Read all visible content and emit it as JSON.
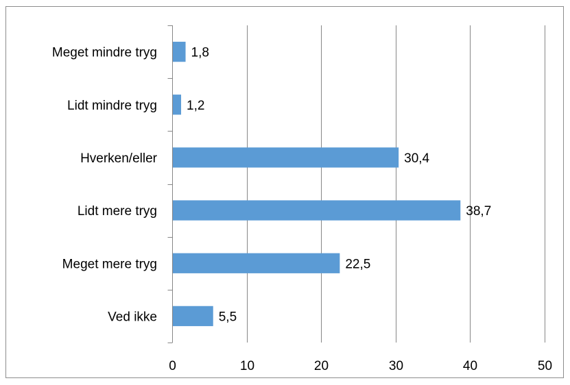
{
  "chart_data": {
    "type": "bar",
    "orientation": "horizontal",
    "categories": [
      "Meget mindre tryg",
      "Lidt mindre tryg",
      "Hverken/eller",
      "Lidt mere tryg",
      "Meget mere tryg",
      "Ved ikke"
    ],
    "values": [
      1.8,
      1.2,
      30.4,
      38.7,
      22.5,
      5.5
    ],
    "value_labels": [
      "1,8",
      "1,2",
      "30,4",
      "38,7",
      "22,5",
      "5,5"
    ],
    "xlim": [
      0,
      50
    ],
    "xticks": [
      "0",
      "10",
      "20",
      "30",
      "40",
      "50"
    ],
    "grid": "vertical",
    "legend": "none",
    "bar_color": "#5b9bd5",
    "grid_color": "#868686"
  }
}
